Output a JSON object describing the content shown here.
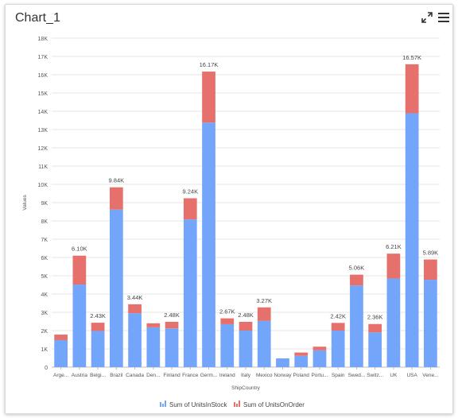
{
  "widget": {
    "title": "Chart_1",
    "expand_icon": "expand-arrows-icon",
    "menu_icon": "hamburger-menu-icon"
  },
  "colors": {
    "stock": "#73a6fb",
    "order": "#e6706b",
    "grid": "#e6e6e6",
    "axis_text": "#555555"
  },
  "chart_data": {
    "type": "bar",
    "stacked": true,
    "xlabel": "ShipCountry",
    "ylabel": "Values",
    "ylim": [
      0,
      18000
    ],
    "yticks": [
      "0",
      "1K",
      "2K",
      "3K",
      "4K",
      "5K",
      "6K",
      "7K",
      "8K",
      "9K",
      "10K",
      "11K",
      "12K",
      "13K",
      "14K",
      "15K",
      "16K",
      "17K",
      "18K"
    ],
    "categories": [
      "Arge...",
      "Austria",
      "Belgi...",
      "Brazil",
      "Canada",
      "Den...",
      "Finland",
      "France",
      "Germ...",
      "Ireland",
      "Italy",
      "Mexico",
      "Norway",
      "Poland",
      "Portu...",
      "Spain",
      "Swed...",
      "Switz...",
      "UK",
      "USA",
      "Vene..."
    ],
    "series": [
      {
        "name": "Sum of UnitsInStock",
        "color": "#73a6fb",
        "values": [
          1480,
          4520,
          1980,
          8620,
          2950,
          2180,
          2120,
          8080,
          13380,
          2350,
          2000,
          2530,
          480,
          620,
          920,
          2000,
          4470,
          1900,
          4850,
          13890,
          4780
        ]
      },
      {
        "name": "Sum of UnitsOnOrder",
        "color": "#e6706b",
        "values": [
          300,
          1580,
          450,
          1220,
          490,
          220,
          360,
          1160,
          2790,
          320,
          480,
          740,
          0,
          180,
          200,
          420,
          590,
          460,
          1360,
          2680,
          1110
        ]
      }
    ],
    "data_labels": [
      "",
      "6.10K",
      "2.43K",
      "9.84K",
      "3.44K",
      "",
      "2.48K",
      "9.24K",
      "16.17K",
      "2.67K",
      "2.48K",
      "3.27K",
      "",
      "",
      "",
      "2.42K",
      "5.06K",
      "2.36K",
      "6.21K",
      "16.57K",
      "5.89K"
    ],
    "legend_position": "bottom",
    "grid": true
  }
}
